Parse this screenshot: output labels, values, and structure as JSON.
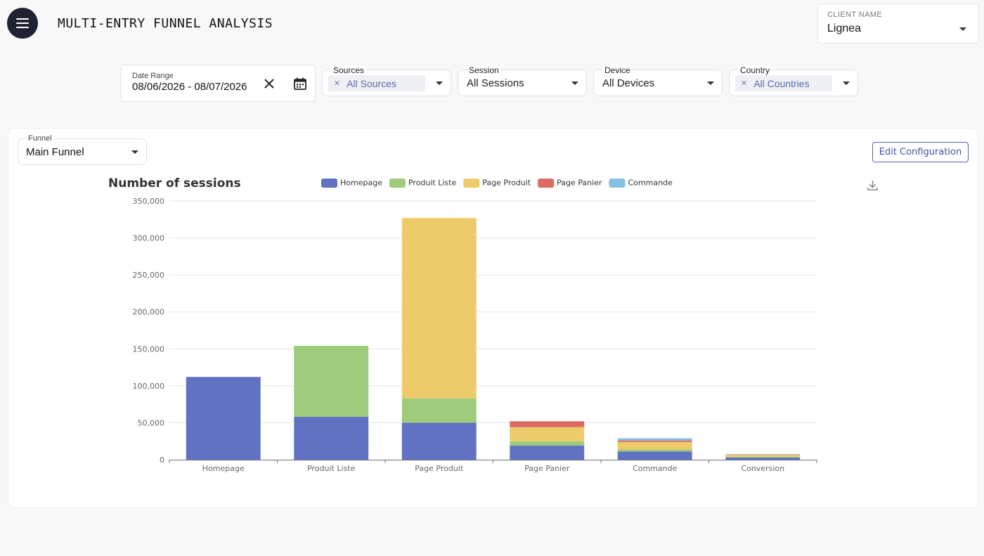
{
  "header": {
    "title": "MULTI-ENTRY FUNNEL ANALYSIS",
    "menu_icon": "hamburger-menu-icon"
  },
  "client": {
    "label": "CLIENT NAME",
    "value": "Lignea"
  },
  "filters": {
    "date_range": {
      "label": "Date Range",
      "value": "08/06/2026 - 08/07/2026"
    },
    "sources": {
      "label": "Sources",
      "chip": "All Sources"
    },
    "session": {
      "label": "Session",
      "value": "All Sessions"
    },
    "device": {
      "label": "Device",
      "value": "All Devices"
    },
    "country": {
      "label": "Country",
      "chip": "All Countries"
    }
  },
  "funnel": {
    "label": "Funnel",
    "value": "Main Funnel"
  },
  "edit_button": "Edit Configuration",
  "chart_data": {
    "type": "bar",
    "stacked": true,
    "title": "Number of sessions",
    "categories": [
      "Homepage",
      "Produit Liste",
      "Page Produit",
      "Page Panier",
      "Commande",
      "Conversion"
    ],
    "series": [
      {
        "name": "Homepage",
        "color": "#6172c2",
        "values": [
          112000,
          58000,
          50000,
          19000,
          11000,
          3000
        ]
      },
      {
        "name": "Produit Liste",
        "color": "#9ecb7c",
        "values": [
          0,
          96000,
          33000,
          6000,
          3000,
          1000
        ]
      },
      {
        "name": "Page Produit",
        "color": "#eecb6a",
        "values": [
          0,
          0,
          244000,
          19000,
          10000,
          2500
        ]
      },
      {
        "name": "Page Panier",
        "color": "#db6a63",
        "values": [
          0,
          0,
          0,
          8000,
          2000,
          500
        ]
      },
      {
        "name": "Commande",
        "color": "#86c0e0",
        "values": [
          0,
          0,
          0,
          0,
          3000,
          500
        ]
      }
    ],
    "yticks": [
      "0",
      "50,000",
      "100,000",
      "150,000",
      "200,000",
      "250,000",
      "300,000",
      "350,000"
    ],
    "ylim": [
      0,
      350000
    ],
    "legend_position": "top",
    "grid": true
  }
}
